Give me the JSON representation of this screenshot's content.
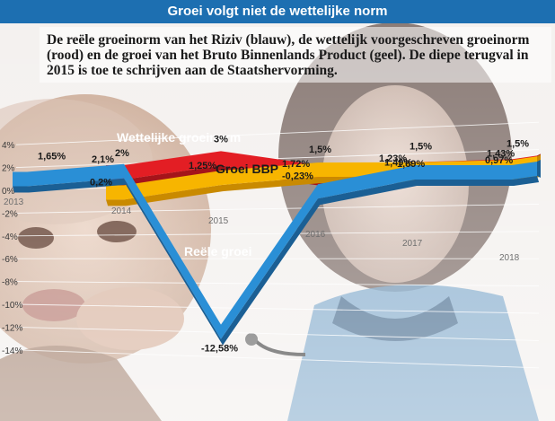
{
  "title": "Groei volgt niet de wettelijke norm",
  "subtitle": "De reële groeinorm van het Riziv (blauw), de wettelijk voorgeschreven groeinorm (rood) en de groei van het Bruto Binnenlands Product (geel). De diepe terugval in 2015 is toe te schrijven aan de Staatshervorming.",
  "chart_data": {
    "type": "line",
    "x": [
      "2013",
      "2014",
      "2015",
      "2016",
      "2017",
      "2018"
    ],
    "y_ticks": [
      "4%",
      "2%",
      "0%",
      "-2%",
      "-4%",
      "-6%",
      "-8%",
      "-10%",
      "-12%",
      "-14%"
    ],
    "ylim": [
      -14,
      4
    ],
    "series": [
      {
        "name": "Wettelijke groeinorm",
        "color": "#e31e24",
        "values": [
          null,
          2,
          3,
          1.5,
          1.5,
          1.5
        ],
        "labels": [
          null,
          "2%",
          "3%",
          "1,5%",
          "1,5%",
          "1,5%"
        ]
      },
      {
        "name": "Groei BBP",
        "color": "#f7b500",
        "values": [
          null,
          0.2,
          1.25,
          1.72,
          1.49,
          1.43
        ],
        "labels": [
          null,
          "0,2%",
          "1,25%",
          "1,72%",
          "1,49%",
          "1,43%"
        ]
      },
      {
        "name": "Reële groei",
        "color": "#2a8fd6",
        "values": [
          1.65,
          2.1,
          -12.58,
          -0.23,
          1.23,
          0.97
        ],
        "labels": [
          "1,65%",
          "2,1%",
          "-12,58%",
          "-0,23%",
          "1,23%",
          "0,97%"
        ]
      },
      {
        "name": "",
        "values": [
          null,
          null,
          null,
          null,
          1.69,
          null
        ],
        "labels": [
          null,
          null,
          null,
          null,
          "1,69%",
          null
        ]
      }
    ],
    "grid": true,
    "background": "photo"
  }
}
